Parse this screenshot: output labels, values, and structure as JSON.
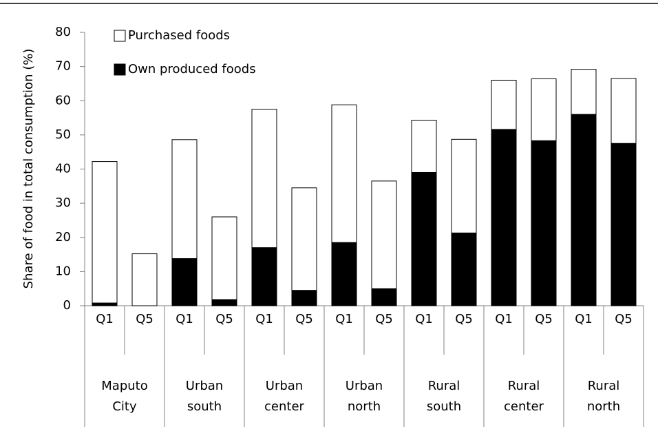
{
  "chart_data": {
    "type": "stacked-bar",
    "y_label": "Share of food in total consumption (%)",
    "categories": [
      "Q1",
      "Q5",
      "Q1",
      "Q5",
      "Q1",
      "Q5",
      "Q1",
      "Q5",
      "Q1",
      "Q5",
      "Q1",
      "Q5",
      "Q1",
      "Q5"
    ],
    "groups": [
      [
        "Maputo",
        "City"
      ],
      [
        "Urban",
        "south"
      ],
      [
        "Urban",
        "center"
      ],
      [
        "Urban",
        "north"
      ],
      [
        "Rural",
        "south"
      ],
      [
        "Rural",
        "center"
      ],
      [
        "Rural",
        "north"
      ]
    ],
    "series": [
      {
        "name": "Own produced foods",
        "color": "#000000",
        "values": [
          0.8,
          0,
          13.8,
          1.8,
          17,
          4.5,
          18.5,
          5,
          39,
          21.3,
          51.6,
          48.3,
          56,
          47.5
        ]
      },
      {
        "name": "Purchased foods",
        "color": "#ffffff",
        "values": [
          41.4,
          15.2,
          34.8,
          24.2,
          40.5,
          30,
          40.3,
          31.5,
          15.3,
          27.4,
          14.4,
          18.1,
          13.2,
          19
        ]
      }
    ],
    "ylim": [
      0,
      80
    ],
    "yticks": [
      0,
      10,
      20,
      30,
      40,
      50,
      60,
      70,
      80
    ]
  }
}
